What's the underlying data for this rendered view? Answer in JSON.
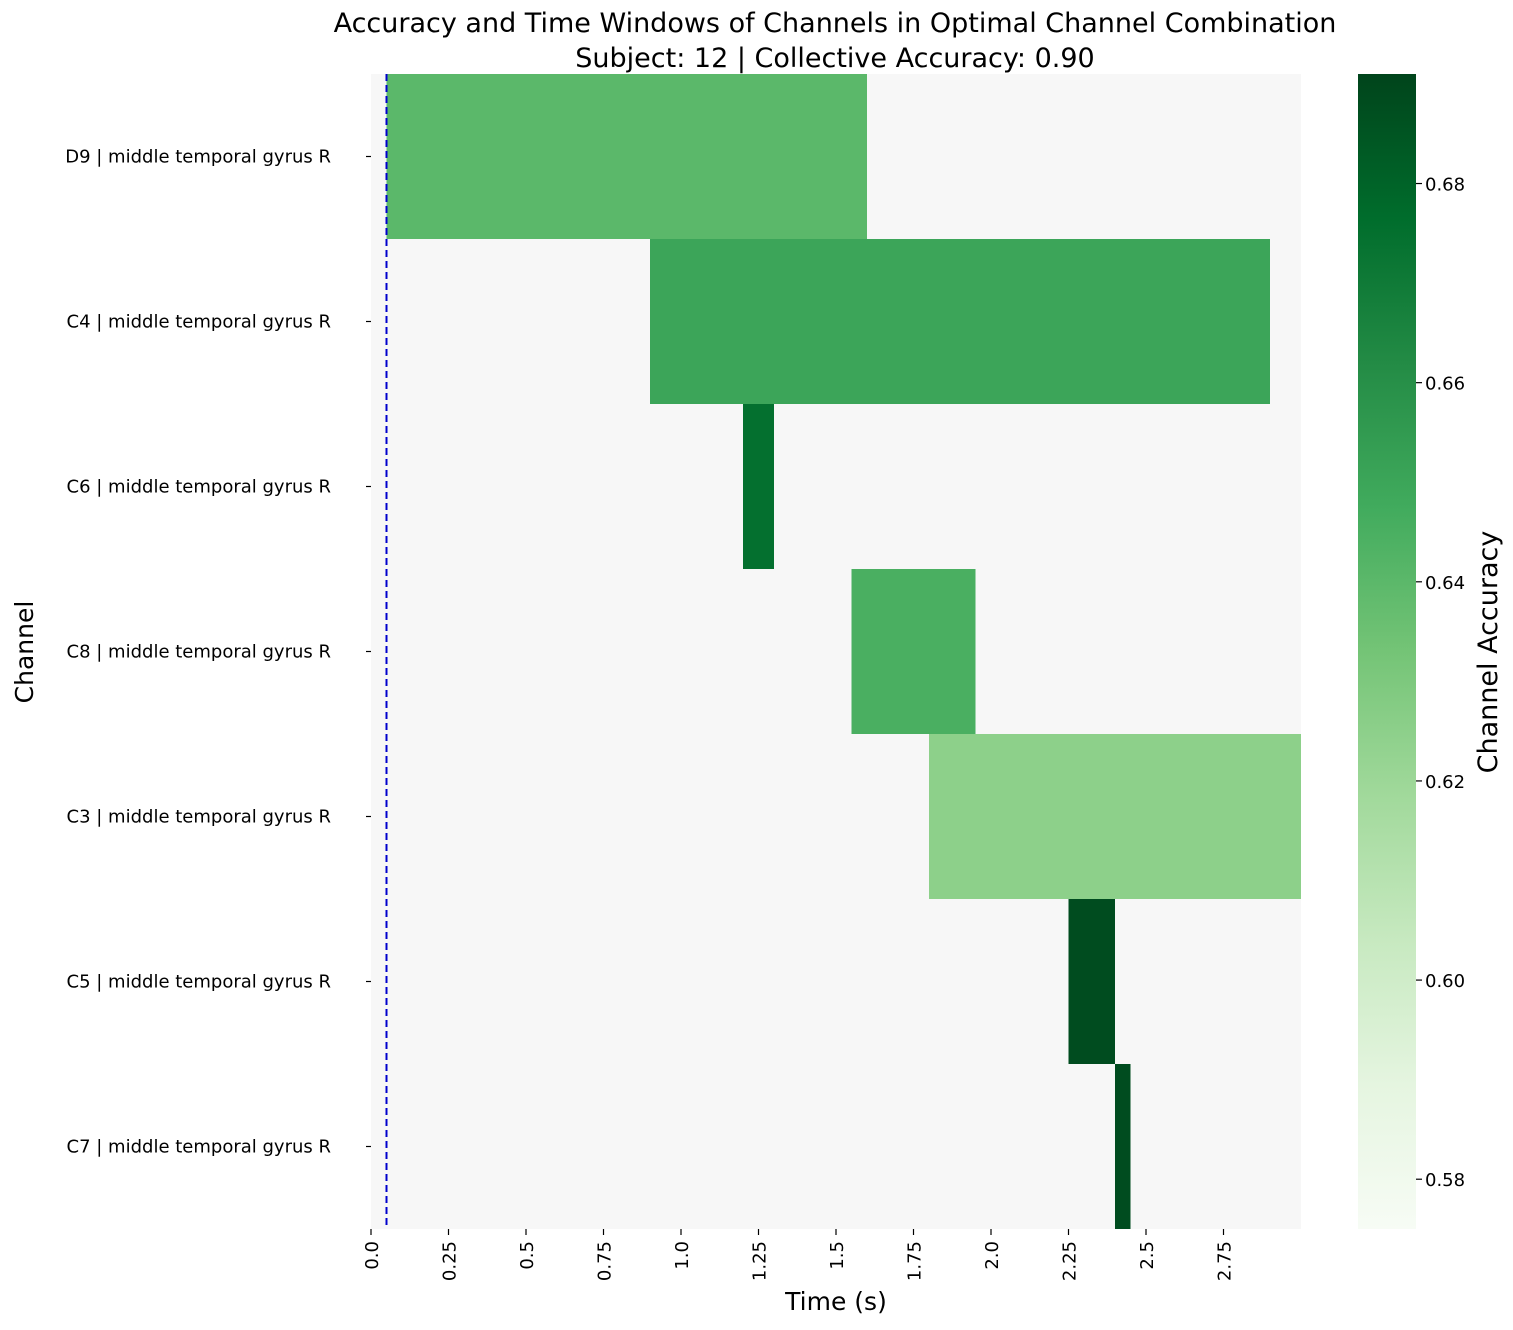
{
  "chart_data": {
    "type": "heatmap",
    "title": "Accuracy and Time Windows of Channels in Optimal Channel Combination",
    "subtitle": "Subject: 12 | Collective Accuracy: 0.90",
    "xlabel": "Time (s)",
    "ylabel": "Channel",
    "xlim": [
      0.0,
      3.0
    ],
    "x_ticks": [
      "0.0",
      "0.25",
      "0.5",
      "0.75",
      "1.0",
      "1.25",
      "1.5",
      "1.75",
      "2.0",
      "2.25",
      "2.5",
      "2.75"
    ],
    "background_color": "#f7f7f7",
    "reference_line": {
      "x": 0.05,
      "color": "#0000cc",
      "style": "dashed"
    },
    "channels": [
      {
        "label": "D9 | middle temporal gyrus R",
        "start": 0.05,
        "end": 1.6,
        "accuracy": 0.64
      },
      {
        "label": "C4 | middle temporal gyrus R",
        "start": 0.9,
        "end": 2.9,
        "accuracy": 0.65
      },
      {
        "label": "C6 | middle temporal gyrus R",
        "start": 1.2,
        "end": 1.3,
        "accuracy": 0.675
      },
      {
        "label": "C8 | middle temporal gyrus R",
        "start": 1.55,
        "end": 1.95,
        "accuracy": 0.645
      },
      {
        "label": "C3 | middle temporal gyrus R",
        "start": 1.8,
        "end": 3.0,
        "accuracy": 0.625
      },
      {
        "label": "C5 | middle temporal gyrus R",
        "start": 2.25,
        "end": 2.4,
        "accuracy": 0.688
      },
      {
        "label": "C7 | middle temporal gyrus R",
        "start": 2.4,
        "end": 2.45,
        "accuracy": 0.688
      }
    ],
    "colorbar": {
      "label": "Channel Accuracy",
      "colormap": "Greens",
      "range": [
        0.575,
        0.691
      ],
      "ticks": [
        "0.58",
        "0.60",
        "0.62",
        "0.64",
        "0.66",
        "0.68"
      ]
    }
  }
}
